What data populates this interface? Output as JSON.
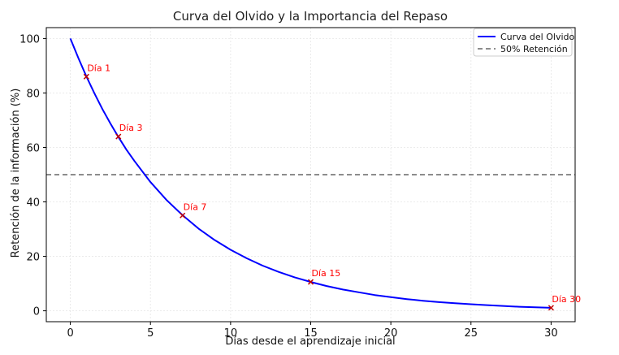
{
  "chart_data": {
    "type": "line",
    "title": "Curva del Olvido y la Importancia del Repaso",
    "xlabel": "Días desde el aprendizaje inicial",
    "ylabel": "Retención de la información (%)",
    "xlim": [
      -1.5,
      31.5
    ],
    "ylim": [
      -4,
      104
    ],
    "xticks": [
      0,
      5,
      10,
      15,
      20,
      25,
      30
    ],
    "yticks": [
      0,
      20,
      40,
      60,
      80,
      100
    ],
    "grid": true,
    "legend_position": "top-right",
    "series": [
      {
        "name": "Curva del Olvido",
        "color": "#0000ff",
        "x": [
          0,
          0.5,
          1,
          1.5,
          2,
          2.5,
          3,
          3.5,
          4,
          5,
          6,
          7,
          8,
          9,
          10,
          11,
          12,
          13,
          14,
          15,
          16,
          17,
          18,
          19,
          20,
          21,
          22,
          23,
          24,
          25,
          26,
          27,
          28,
          29,
          30
        ],
        "y": [
          100,
          92.8,
          86.1,
          79.9,
          74.1,
          68.8,
          63.8,
          59.2,
          55.0,
          47.3,
          40.7,
          35.1,
          30.2,
          26.0,
          22.4,
          19.3,
          16.6,
          14.3,
          12.3,
          10.6,
          9.1,
          7.8,
          6.8,
          5.8,
          5.0,
          4.3,
          3.7,
          3.2,
          2.8,
          2.4,
          2.1,
          1.8,
          1.5,
          1.3,
          1.1
        ]
      }
    ],
    "reference_line": {
      "name": "50% Retención",
      "y": 50,
      "color": "#666666",
      "style": "dashed"
    },
    "review_points": [
      {
        "label": "Día 1",
        "x": 1,
        "y": 86
      },
      {
        "label": "Día 3",
        "x": 3,
        "y": 64
      },
      {
        "label": "Día 7",
        "x": 7,
        "y": 35
      },
      {
        "label": "Día 15",
        "x": 15,
        "y": 10.6
      },
      {
        "label": "Día 30",
        "x": 30,
        "y": 1.1
      }
    ],
    "review_point_color": "#ff0000"
  }
}
